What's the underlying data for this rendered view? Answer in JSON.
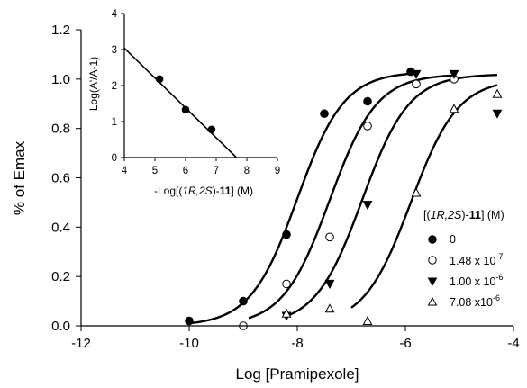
{
  "chart_data": [
    {
      "type": "scatter",
      "title": "",
      "xlabel": "Log [Pramipexole]",
      "ylabel": "% of Emax",
      "xlim": [
        -12,
        -4
      ],
      "ylim": [
        0,
        1.2
      ],
      "xticks": [
        "-12",
        "-10",
        "-8",
        "-6",
        "-4"
      ],
      "yticks": [
        "0.0",
        "0.2",
        "0.4",
        "0.6",
        "0.8",
        "1.0",
        "1.2"
      ],
      "grid": false,
      "legend_title": {
        "prefix": "[(",
        "italic": "1R,2S",
        "mid": ")-",
        "bold": "11",
        "suffix": "] (M)"
      },
      "legend_position": "right",
      "series": [
        {
          "name": "0",
          "marker": "filled-circle",
          "x": [
            -10.0,
            -9.0,
            -8.2,
            -7.5,
            -6.7,
            -5.9
          ],
          "y": [
            0.02,
            0.1,
            0.37,
            0.86,
            0.91,
            1.03
          ],
          "fit": {
            "ec50": -8.0,
            "top": 1.03,
            "bottom": 0.0,
            "hill": 1.0,
            "x_from": -10.0,
            "x_to": -5.9
          }
        },
        {
          "name_mantissa": "1.48 x 10",
          "name_exp": "-7",
          "marker": "open-circle",
          "x": [
            -9.0,
            -8.2,
            -7.4,
            -6.7,
            -5.8,
            -5.1
          ],
          "y": [
            0.0,
            0.17,
            0.36,
            0.81,
            0.98,
            1.0
          ],
          "fit": {
            "ec50": -7.4,
            "top": 1.02,
            "bottom": 0.0,
            "hill": 1.0,
            "x_from": -8.9,
            "x_to": -5.1
          }
        },
        {
          "name_mantissa": "1.00 x 10",
          "name_exp": "-6",
          "marker": "filled-triangle-down",
          "x": [
            -8.2,
            -7.4,
            -6.7,
            -5.8,
            -5.1,
            -4.3
          ],
          "y": [
            0.04,
            0.17,
            0.49,
            1.02,
            1.02,
            0.86
          ],
          "fit": {
            "ec50": -6.8,
            "top": 1.02,
            "bottom": 0.0,
            "hill": 1.0,
            "x_from": -8.2,
            "x_to": -4.3
          }
        },
        {
          "name_mantissa": "7.08 x10",
          "name_exp": "-6",
          "marker": "open-triangle-up",
          "x": [
            -8.2,
            -7.4,
            -6.7,
            -5.8,
            -5.1,
            -4.3
          ],
          "y": [
            0.05,
            0.07,
            0.02,
            0.54,
            0.88,
            0.94
          ],
          "fit": {
            "ec50": -5.9,
            "top": 1.0,
            "bottom": 0.0,
            "hill": 1.0,
            "x_from": -7.0,
            "x_to": -4.3
          }
        }
      ]
    },
    {
      "type": "scatter",
      "title": "",
      "xlabel": {
        "prefix": "-Log[(",
        "italic": "1R,2S",
        "mid": ")-",
        "bold": "11",
        "suffix": "] (M)"
      },
      "ylabel": "Log(A'/A-1)",
      "xlim": [
        4,
        9
      ],
      "ylim": [
        0,
        4
      ],
      "xticks": [
        "4",
        "5",
        "6",
        "7",
        "8",
        "9"
      ],
      "yticks": [
        "0",
        "1",
        "2",
        "3",
        "4"
      ],
      "grid": false,
      "series": [
        {
          "marker": "filled-circle",
          "x": [
            5.15,
            6.0,
            6.85
          ],
          "y": [
            2.18,
            1.33,
            0.78
          ],
          "fit": {
            "slope": -0.83,
            "intercept": 6.36,
            "x_from": 4.0,
            "x_to": 7.66
          }
        }
      ]
    }
  ]
}
